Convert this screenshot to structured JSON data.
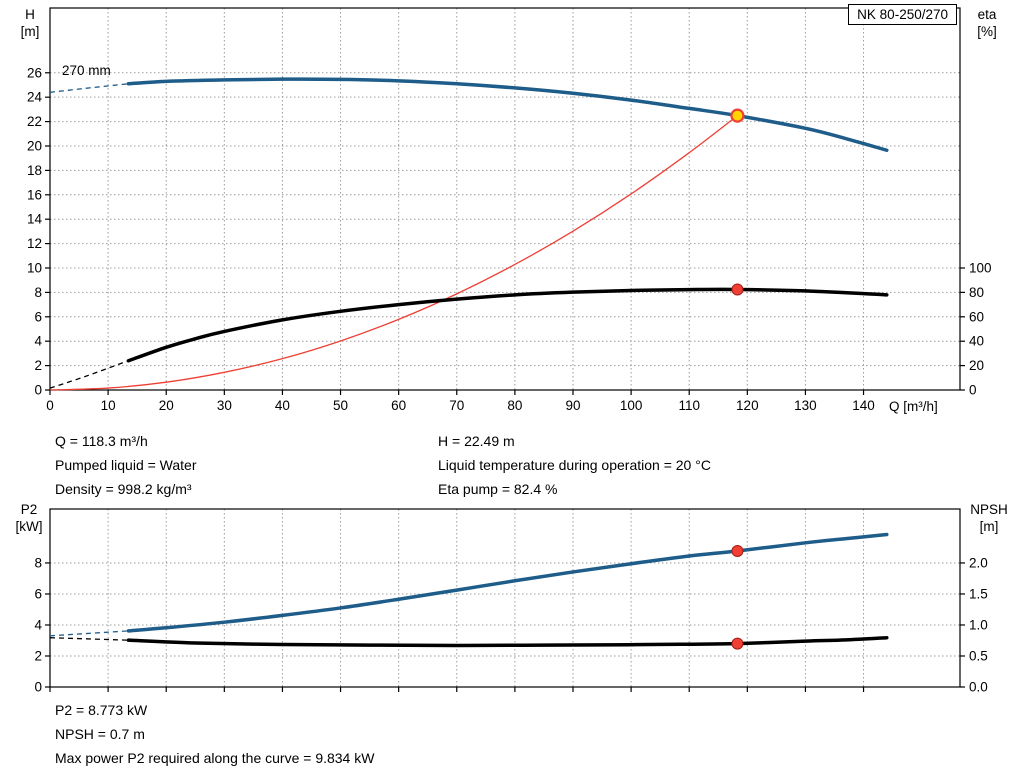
{
  "pump_model": "NK 80-250/270",
  "info_top": {
    "col1": [
      "Q = 118.3 m³/h",
      "Pumped liquid = Water",
      "Density = 998.2 kg/m³"
    ],
    "col2": [
      "H = 22.49 m",
      "Liquid temperature during operation = 20 °C",
      "Eta pump = 82.4 %"
    ]
  },
  "info_bottom": [
    "P2 = 8.773 kW",
    "NPSH = 0.7 m",
    "Max power P2 required along the curve = 9.834 kW"
  ],
  "colors": {
    "curve_blue": "#1e5c8a",
    "curve_black": "#000000",
    "system_red": "#ee4035",
    "duty_yellow": "#ffd400"
  },
  "chart_data": [
    {
      "type": "line",
      "name": "hq-chart",
      "title": "NK 80-250/270",
      "impeller_label": "270 mm",
      "xlabel": "Q [m³/h]",
      "ylabel": "H [m]",
      "ylabel_right": "eta [%]",
      "axes": {
        "left": {
          "label": "H",
          "unit": "[m]"
        },
        "right": {
          "label": "eta",
          "unit": "[%]"
        }
      },
      "xlim": [
        0,
        156.6
      ],
      "ylim_left": [
        0,
        31.31
      ],
      "x_ticks": [
        0,
        10,
        20,
        30,
        40,
        50,
        60,
        70,
        80,
        90,
        100,
        110,
        120,
        130,
        140
      ],
      "y_ticks_left": [
        0,
        2,
        4,
        6,
        8,
        10,
        12,
        14,
        16,
        18,
        20,
        22,
        24,
        26
      ],
      "right_axis": {
        "factor": 0.1,
        "ticks": [
          {
            "label": "0",
            "value": 0
          },
          {
            "label": "20",
            "value": 20
          },
          {
            "label": "40",
            "value": 40
          },
          {
            "label": "60",
            "value": 60
          },
          {
            "label": "80",
            "value": 80
          },
          {
            "label": "100",
            "value": 100
          }
        ]
      },
      "duty_point": {
        "q_m3h": 118.3,
        "h_m": 22.49,
        "eta_pct": 82.4
      },
      "series": [
        {
          "name": "head-curve",
          "color": "#1e5c8a",
          "width": 3.5,
          "axis": "left",
          "dash_points": [
            [
              0,
              24.4
            ],
            [
              6,
              24.72
            ],
            [
              13.5,
              25.1
            ]
          ],
          "points": [
            [
              13.5,
              25.1
            ],
            [
              20,
              25.3
            ],
            [
              30,
              25.42
            ],
            [
              40,
              25.48
            ],
            [
              50,
              25.46
            ],
            [
              60,
              25.34
            ],
            [
              70,
              25.1
            ],
            [
              80,
              24.76
            ],
            [
              90,
              24.32
            ],
            [
              100,
              23.76
            ],
            [
              110,
              23.08
            ],
            [
              118.3,
              22.49
            ],
            [
              130,
              21.45
            ],
            [
              137,
              20.6
            ],
            [
              144,
              19.65
            ]
          ]
        },
        {
          "name": "efficiency-curve",
          "color": "#000000",
          "width": 3.5,
          "axis": "right",
          "dash_points": [
            [
              0,
              1.5
            ],
            [
              6,
              11
            ],
            [
              13.5,
              24
            ]
          ],
          "points": [
            [
              13.5,
              24
            ],
            [
              20,
              35
            ],
            [
              25,
              42
            ],
            [
              30,
              48
            ],
            [
              40,
              57.5
            ],
            [
              50,
              64.5
            ],
            [
              60,
              70
            ],
            [
              70,
              74.5
            ],
            [
              80,
              78
            ],
            [
              90,
              80.2
            ],
            [
              100,
              81.6
            ],
            [
              110,
              82.3
            ],
            [
              118.3,
              82.4
            ],
            [
              130,
              81.2
            ],
            [
              144,
              78
            ]
          ]
        },
        {
          "name": "system-curve",
          "color": "#ee4035",
          "width": 1.3,
          "axis": "left",
          "points": [
            [
              0,
              0
            ],
            [
              10,
              0.16
            ],
            [
              20,
              0.64
            ],
            [
              30,
              1.45
            ],
            [
              40,
              2.57
            ],
            [
              50,
              4.02
            ],
            [
              60,
              5.79
            ],
            [
              70,
              7.88
            ],
            [
              80,
              10.29
            ],
            [
              90,
              13.02
            ],
            [
              100,
              16.07
            ],
            [
              110,
              19.45
            ],
            [
              118.3,
              22.49
            ]
          ]
        }
      ],
      "markers": [
        {
          "name": "duty-point-marker",
          "x": 118.3,
          "y": 22.49,
          "axis": "left",
          "fill": "#ffd400",
          "stroke": "#ee4035",
          "stroke_width": 2.2,
          "r": 6
        },
        {
          "name": "eta-duty-marker",
          "x": 118.3,
          "y": 82.4,
          "axis": "right",
          "fill": "#ee4035",
          "stroke": "#a61b14",
          "stroke_width": 1,
          "r": 5.5
        }
      ]
    },
    {
      "type": "line",
      "name": "p2-npsh-chart",
      "xlabel": "",
      "ylabel": "P2 [kW]",
      "ylabel_right": "NPSH [m]",
      "axes": {
        "left": {
          "label": "P2",
          "unit": "[kW]"
        },
        "right": {
          "label": "NPSH",
          "unit": "[m]"
        }
      },
      "xlim": [
        0,
        156.6
      ],
      "ylim_left": [
        0,
        11.48
      ],
      "x_ticks": [
        0,
        10,
        20,
        30,
        40,
        50,
        60,
        70,
        80,
        90,
        100,
        110,
        120,
        130,
        140
      ],
      "y_ticks_left": [
        0,
        2,
        4,
        6,
        8
      ],
      "right_axis": {
        "factor": 4,
        "ticks": [
          {
            "label": "0.0",
            "value": 0
          },
          {
            "label": "0.5",
            "value": 0.5
          },
          {
            "label": "1.0",
            "value": 1
          },
          {
            "label": "1.5",
            "value": 1.5
          },
          {
            "label": "2.0",
            "value": 2
          }
        ]
      },
      "duty_point": {
        "p2_kw": 8.773,
        "npsh_m": 0.7,
        "max_p2_kw": 9.834
      },
      "series": [
        {
          "name": "p2-curve",
          "color": "#1e5c8a",
          "width": 3.5,
          "axis": "left",
          "dash_points": [
            [
              0,
              3.3
            ],
            [
              13.5,
              3.62
            ]
          ],
          "points": [
            [
              13.5,
              3.62
            ],
            [
              20,
              3.82
            ],
            [
              30,
              4.18
            ],
            [
              40,
              4.62
            ],
            [
              50,
              5.1
            ],
            [
              60,
              5.66
            ],
            [
              70,
              6.25
            ],
            [
              80,
              6.85
            ],
            [
              90,
              7.42
            ],
            [
              100,
              7.95
            ],
            [
              110,
              8.45
            ],
            [
              118.3,
              8.773
            ],
            [
              130,
              9.3
            ],
            [
              137,
              9.57
            ],
            [
              144,
              9.834
            ]
          ]
        },
        {
          "name": "npsh-curve",
          "color": "#000000",
          "width": 3.5,
          "axis": "right",
          "dash_points": [
            [
              0,
              0.795
            ],
            [
              13.5,
              0.755
            ]
          ],
          "points": [
            [
              13.5,
              0.755
            ],
            [
              25,
              0.71
            ],
            [
              40,
              0.685
            ],
            [
              55,
              0.675
            ],
            [
              70,
              0.67
            ],
            [
              85,
              0.675
            ],
            [
              100,
              0.682
            ],
            [
              110,
              0.69
            ],
            [
              118.3,
              0.7
            ],
            [
              130,
              0.74
            ],
            [
              137,
              0.76
            ],
            [
              144,
              0.795
            ]
          ]
        }
      ],
      "markers": [
        {
          "name": "p2-duty-marker",
          "x": 118.3,
          "y": 8.773,
          "axis": "left",
          "fill": "#ee4035",
          "stroke": "#a61b14",
          "stroke_width": 1,
          "r": 5.5
        },
        {
          "name": "npsh-duty-marker",
          "x": 118.3,
          "y": 0.7,
          "axis": "right",
          "fill": "#ee4035",
          "stroke": "#a61b14",
          "stroke_width": 1,
          "r": 5.5
        }
      ]
    }
  ]
}
